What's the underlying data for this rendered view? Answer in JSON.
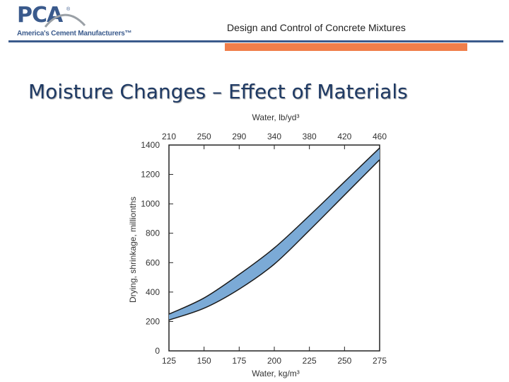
{
  "header": {
    "logo_text": "PCA",
    "logo_tagline": "America's Cement Manufacturers™",
    "logo_mark": "®",
    "title": "Design and Control of Concrete Mixtures",
    "rule_color": "#3a5a8c",
    "accent_color": "#f07e4a"
  },
  "slide": {
    "title": "Moisture Changes – Effect of Materials"
  },
  "chart_data": {
    "type": "area",
    "title": "",
    "xlabel": "Water, kg/m³",
    "x2label": "Water, lb/yd³",
    "ylabel": "Drying, shrinkage, millionths",
    "xlim": [
      125,
      275
    ],
    "ylim": [
      0,
      1400
    ],
    "x_ticks": [
      125,
      150,
      175,
      200,
      225,
      250,
      275
    ],
    "y_ticks": [
      0,
      200,
      400,
      600,
      800,
      1000,
      1200,
      1400
    ],
    "x2_ticks": [
      "210",
      "250",
      "290",
      "340",
      "380",
      "420",
      "460"
    ],
    "grid": false,
    "band_color": "#7baad6",
    "series": [
      {
        "name": "upper",
        "x": [
          125,
          150,
          175,
          200,
          225,
          250,
          275
        ],
        "y": [
          250,
          360,
          520,
          700,
          920,
          1150,
          1380
        ]
      },
      {
        "name": "lower",
        "x": [
          125,
          150,
          175,
          200,
          225,
          250,
          275
        ],
        "y": [
          210,
          290,
          420,
          590,
          820,
          1060,
          1300
        ]
      }
    ]
  }
}
